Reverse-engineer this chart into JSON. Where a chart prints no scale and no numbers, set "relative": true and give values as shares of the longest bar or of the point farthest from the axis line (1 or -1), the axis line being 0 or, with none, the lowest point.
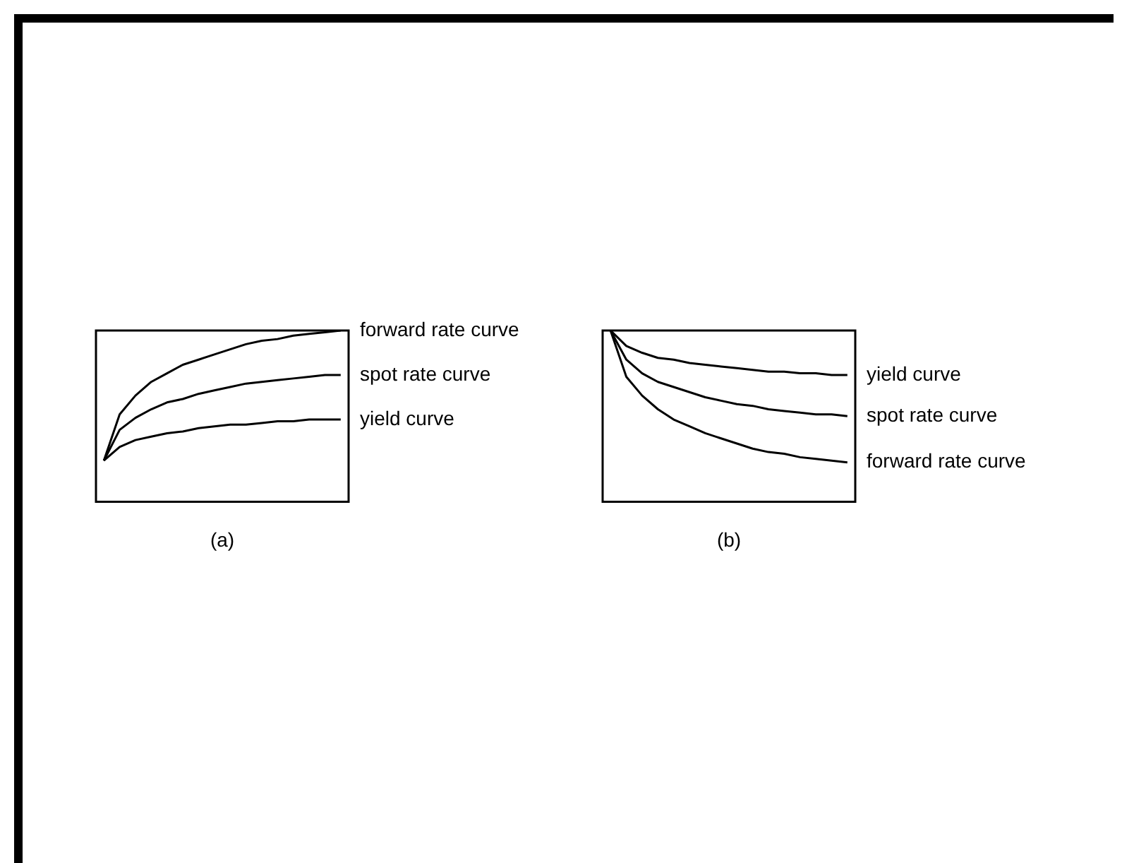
{
  "chart_data": [
    {
      "type": "line",
      "relative": true,
      "xlabel": "(a)",
      "legend": false,
      "marker": "none",
      "line_style": "solid",
      "categories": [
        null,
        null,
        null,
        null,
        null,
        null,
        null,
        null,
        null,
        null,
        null,
        null,
        null,
        null,
        null,
        null
      ],
      "series": [
        {
          "name": "forward rate curve",
          "color": "#000000",
          "values": [
            0.24,
            0.51,
            0.62,
            0.7,
            0.75,
            0.8,
            0.83,
            0.86,
            0.89,
            0.92,
            0.94,
            0.95,
            0.97,
            0.98,
            0.99,
            1
          ]
        },
        {
          "name": "spot rate curve",
          "color": "#000000",
          "values": [
            0.24,
            0.42,
            0.49,
            0.54,
            0.58,
            0.6,
            0.63,
            0.65,
            0.67,
            0.69,
            0.7,
            0.71,
            0.72,
            0.73,
            0.74,
            0.74
          ]
        },
        {
          "name": "yield curve",
          "color": "#000000",
          "values": [
            0.24,
            0.32,
            0.36,
            0.38,
            0.4,
            0.41,
            0.43,
            0.44,
            0.45,
            0.45,
            0.46,
            0.47,
            0.47,
            0.48,
            0.48,
            0.48
          ]
        }
      ]
    },
    {
      "type": "line",
      "relative": true,
      "xlabel": "(b)",
      "legend": false,
      "marker": "none",
      "line_style": "solid",
      "categories": [
        null,
        null,
        null,
        null,
        null,
        null,
        null,
        null,
        null,
        null,
        null,
        null,
        null,
        null,
        null,
        null
      ],
      "series": [
        {
          "name": "yield curve",
          "color": "#000000",
          "values": [
            1,
            0.91,
            0.87,
            0.84,
            0.83,
            0.81,
            0.8,
            0.79,
            0.78,
            0.77,
            0.76,
            0.76,
            0.75,
            0.75,
            0.74,
            0.74
          ]
        },
        {
          "name": "spot rate curve",
          "color": "#000000",
          "values": [
            1,
            0.83,
            0.75,
            0.7,
            0.67,
            0.64,
            0.61,
            0.59,
            0.57,
            0.56,
            0.54,
            0.53,
            0.52,
            0.51,
            0.51,
            0.5
          ]
        },
        {
          "name": "forward rate curve",
          "color": "#000000",
          "values": [
            1,
            0.73,
            0.62,
            0.54,
            0.48,
            0.44,
            0.4,
            0.37,
            0.34,
            0.31,
            0.29,
            0.28,
            0.26,
            0.25,
            0.24,
            0.23
          ]
        }
      ]
    }
  ]
}
